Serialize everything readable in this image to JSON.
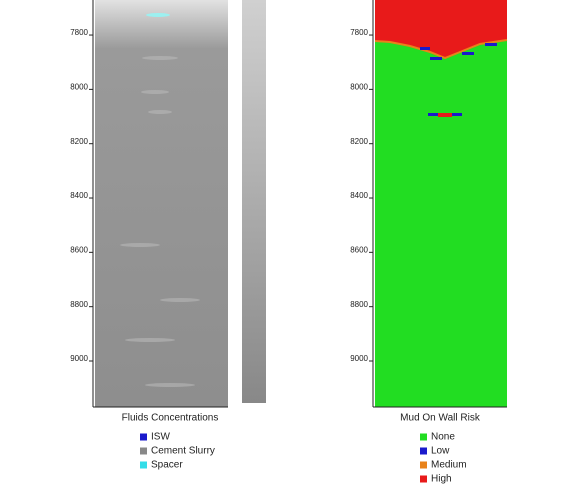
{
  "chart_data": [
    {
      "type": "strip",
      "title": "Fluids Concentrations",
      "ylim": [
        7671,
        9162
      ],
      "yticks": [
        7800,
        8000,
        8200,
        8400,
        8600,
        8800,
        9000
      ],
      "inverted": true,
      "series": [
        {
          "name": "ISW",
          "color": "#1a1acc"
        },
        {
          "name": "Cement Slurry",
          "color": "#888888"
        },
        {
          "name": "Spacer",
          "color": "#33dde8"
        }
      ]
    },
    {
      "type": "strip",
      "title": "Mud On Wall Risk",
      "ylim": [
        7671,
        9162
      ],
      "yticks": [
        7800,
        8000,
        8200,
        8400,
        8600,
        8800,
        9000
      ],
      "inverted": true,
      "series": [
        {
          "name": "None",
          "color": "#22dd22"
        },
        {
          "name": "Low",
          "color": "#1a1acc"
        },
        {
          "name": "Medium",
          "color": "#e8821a"
        },
        {
          "name": "High",
          "color": "#e81a1a"
        }
      ]
    }
  ]
}
